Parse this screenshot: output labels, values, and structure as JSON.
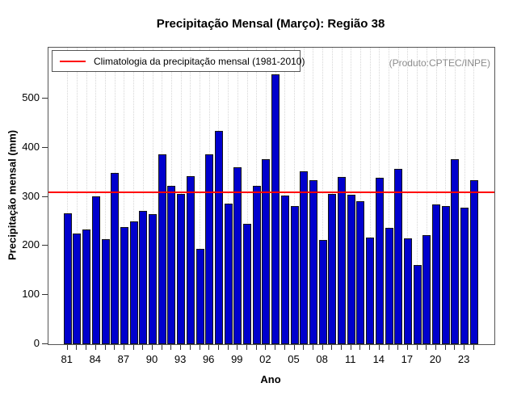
{
  "chart_data": {
    "type": "bar",
    "title": "Precipitação Mensal (Março): Região 38",
    "xlabel": "Ano",
    "ylabel": "Precipitação mensal (mm)",
    "legend_label": "Climatologia da precipitação mensal (1981-2010)",
    "watermark": "(Produto:CPTEC/INPE)",
    "years": [
      1981,
      1982,
      1983,
      1984,
      1985,
      1986,
      1987,
      1988,
      1989,
      1990,
      1991,
      1992,
      1993,
      1994,
      1995,
      1996,
      1997,
      1998,
      1999,
      2000,
      2001,
      2002,
      2003,
      2004,
      2005,
      2006,
      2007,
      2008,
      2009,
      2010,
      2011,
      2012,
      2013,
      2014,
      2015,
      2016,
      2017,
      2018,
      2019,
      2020,
      2021,
      2022,
      2023,
      2024
    ],
    "values": [
      266,
      225,
      233,
      302,
      214,
      349,
      238,
      250,
      272,
      265,
      386,
      322,
      306,
      342,
      194,
      387,
      434,
      287,
      361,
      245,
      322,
      377,
      550,
      303,
      281,
      352,
      334,
      213,
      306,
      340,
      305,
      291,
      217,
      339,
      237,
      357,
      216,
      161,
      223,
      284,
      281,
      377,
      278,
      334
    ],
    "climatology_value": 309,
    "x_tick_labels": [
      "81",
      "84",
      "87",
      "90",
      "93",
      "96",
      "99",
      "02",
      "05",
      "08",
      "11",
      "14",
      "17",
      "20",
      "23"
    ],
    "x_tick_step_years": 3,
    "y_ticks": [
      0,
      100,
      200,
      300,
      400,
      500
    ],
    "y_axis_max": 604,
    "ylim": [
      0,
      604
    ],
    "grid": "vertical dotted gridlines, one per year",
    "legend_position": "top-left inside plot",
    "bar_color": "#0000CD",
    "bar_border_color": "#151515",
    "climatology_color": "#FF0000",
    "watermark_color": "#8c8c8c"
  }
}
